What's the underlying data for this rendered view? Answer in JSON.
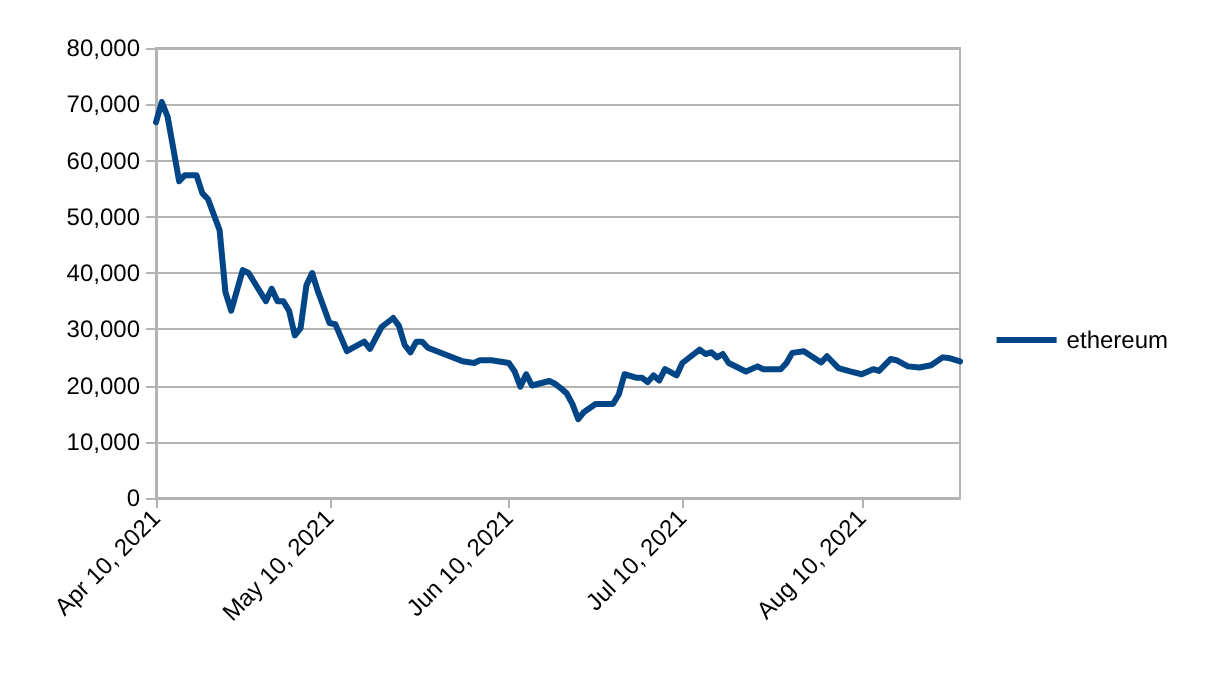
{
  "chart_data": {
    "type": "line",
    "x": [
      "2021-04-10",
      "2021-04-11",
      "2021-04-12",
      "2021-04-13",
      "2021-04-14",
      "2021-04-15",
      "2021-04-17",
      "2021-04-18",
      "2021-04-19",
      "2021-04-21",
      "2021-04-22",
      "2021-04-23",
      "2021-04-25",
      "2021-04-26",
      "2021-04-29",
      "2021-04-30",
      "2021-05-01",
      "2021-05-02",
      "2021-05-03",
      "2021-05-04",
      "2021-05-05",
      "2021-05-06",
      "2021-05-07",
      "2021-05-08",
      "2021-05-10",
      "2021-05-11",
      "2021-05-13",
      "2021-05-14",
      "2021-05-16",
      "2021-05-17",
      "2021-05-19",
      "2021-05-21",
      "2021-05-22",
      "2021-05-23",
      "2021-05-24",
      "2021-05-25",
      "2021-05-26",
      "2021-05-27",
      "2021-05-31",
      "2021-06-02",
      "2021-06-04",
      "2021-06-05",
      "2021-06-07",
      "2021-06-10",
      "2021-06-11",
      "2021-06-12",
      "2021-06-13",
      "2021-06-14",
      "2021-06-17",
      "2021-06-18",
      "2021-06-19",
      "2021-06-20",
      "2021-06-21",
      "2021-06-22",
      "2021-06-23",
      "2021-06-25",
      "2021-06-28",
      "2021-06-29",
      "2021-06-30",
      "2021-07-02",
      "2021-07-03",
      "2021-07-04",
      "2021-07-05",
      "2021-07-06",
      "2021-07-07",
      "2021-07-09",
      "2021-07-10",
      "2021-07-13",
      "2021-07-14",
      "2021-07-15",
      "2021-07-16",
      "2021-07-17",
      "2021-07-18",
      "2021-07-21",
      "2021-07-23",
      "2021-07-24",
      "2021-07-27",
      "2021-07-28",
      "2021-07-29",
      "2021-07-31",
      "2021-08-03",
      "2021-08-04",
      "2021-08-06",
      "2021-08-08",
      "2021-08-10",
      "2021-08-12",
      "2021-08-13",
      "2021-08-15",
      "2021-08-16",
      "2021-08-18",
      "2021-08-20",
      "2021-08-22",
      "2021-08-24",
      "2021-08-25",
      "2021-08-27"
    ],
    "series": [
      {
        "name": "ethereum",
        "color": "#004586",
        "values": [
          66800,
          70400,
          67800,
          62100,
          56300,
          57400,
          57400,
          54200,
          53100,
          47600,
          36600,
          33300,
          40500,
          40000,
          35000,
          37200,
          35000,
          35000,
          33300,
          28900,
          30200,
          37800,
          40000,
          36700,
          31100,
          30900,
          26100,
          26700,
          27800,
          26500,
          30400,
          32000,
          30600,
          27200,
          25900,
          27800,
          27800,
          26700,
          25100,
          24300,
          24000,
          24500,
          24500,
          24000,
          22500,
          19800,
          22000,
          20000,
          20800,
          20300,
          19500,
          18600,
          16700,
          14000,
          15300,
          16700,
          16700,
          18400,
          22000,
          21400,
          21400,
          20600,
          21800,
          20900,
          22900,
          21800,
          24000,
          26400,
          25600,
          25900,
          25000,
          25600,
          24000,
          22500,
          23400,
          22900,
          22900,
          24000,
          25800,
          26100,
          24100,
          25200,
          23100,
          22500,
          22000,
          22900,
          22600,
          24700,
          24500,
          23400,
          23200,
          23600,
          25000,
          24900,
          24300
        ]
      }
    ],
    "xlim": [
      "2021-04-10",
      "2021-08-27"
    ],
    "xticks": [
      {
        "value": "2021-04-10",
        "label": "Apr 10, 2021"
      },
      {
        "value": "2021-05-10",
        "label": "May 10, 2021"
      },
      {
        "value": "2021-06-10",
        "label": "Jun 10, 2021"
      },
      {
        "value": "2021-07-10",
        "label": "Jul 10, 2021"
      },
      {
        "value": "2021-08-10",
        "label": "Aug 10, 2021"
      }
    ],
    "ylim": [
      0,
      80000
    ],
    "yticks": [
      {
        "value": 0,
        "label": "0"
      },
      {
        "value": 10000,
        "label": "10,000"
      },
      {
        "value": 20000,
        "label": "20,000"
      },
      {
        "value": 30000,
        "label": "30,000"
      },
      {
        "value": 40000,
        "label": "40,000"
      },
      {
        "value": 50000,
        "label": "50,000"
      },
      {
        "value": 60000,
        "label": "60,000"
      },
      {
        "value": 70000,
        "label": "70,000"
      },
      {
        "value": 80000,
        "label": "80,000"
      }
    ],
    "grid": "y",
    "legend": "right",
    "marker": "none",
    "line_style": "solid"
  }
}
